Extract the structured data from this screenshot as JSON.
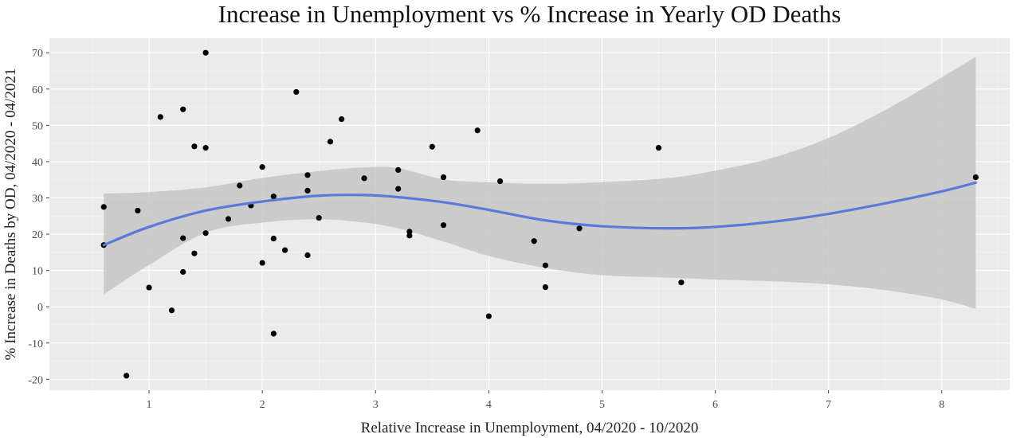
{
  "chart_data": {
    "type": "scatter",
    "title": "Increase in Unemployment vs % Increase in Yearly OD Deaths",
    "xlabel": "Relative Increase in Unemployment, 04/2020 - 10/2020",
    "ylabel": "% Increase in Deaths by OD, 04/2020 - 04/2021",
    "xlim": [
      0.12,
      8.6
    ],
    "ylim": [
      -23,
      74
    ],
    "x_ticks": [
      1,
      2,
      3,
      4,
      5,
      6,
      7,
      8
    ],
    "y_ticks": [
      -20,
      -10,
      0,
      10,
      20,
      30,
      40,
      50,
      60,
      70
    ],
    "grid": true,
    "colors": {
      "panel_background": "#ebebeb",
      "grid": "#ffffff",
      "points": "#000000",
      "smooth_line": "#5b79d9",
      "confidence_band": "#c6c6c6"
    },
    "points": [
      {
        "x": 0.6,
        "y": 27.5
      },
      {
        "x": 0.6,
        "y": 17.0
      },
      {
        "x": 0.8,
        "y": -19.0
      },
      {
        "x": 0.9,
        "y": 26.5
      },
      {
        "x": 1.0,
        "y": 5.3
      },
      {
        "x": 1.1,
        "y": 52.3
      },
      {
        "x": 1.2,
        "y": -1.0
      },
      {
        "x": 1.3,
        "y": 54.4
      },
      {
        "x": 1.3,
        "y": 18.9
      },
      {
        "x": 1.3,
        "y": 9.6
      },
      {
        "x": 1.4,
        "y": 44.2
      },
      {
        "x": 1.4,
        "y": 14.7
      },
      {
        "x": 1.5,
        "y": 70.0
      },
      {
        "x": 1.5,
        "y": 43.8
      },
      {
        "x": 1.5,
        "y": 20.3
      },
      {
        "x": 1.7,
        "y": 24.2
      },
      {
        "x": 1.8,
        "y": 33.4
      },
      {
        "x": 1.9,
        "y": 27.9
      },
      {
        "x": 2.0,
        "y": 38.5
      },
      {
        "x": 2.0,
        "y": 12.1
      },
      {
        "x": 2.1,
        "y": 30.4
      },
      {
        "x": 2.1,
        "y": 18.8
      },
      {
        "x": 2.1,
        "y": -7.4
      },
      {
        "x": 2.2,
        "y": 15.6
      },
      {
        "x": 2.3,
        "y": 59.2
      },
      {
        "x": 2.4,
        "y": 36.3
      },
      {
        "x": 2.4,
        "y": 32.0
      },
      {
        "x": 2.4,
        "y": 14.2
      },
      {
        "x": 2.5,
        "y": 24.5
      },
      {
        "x": 2.6,
        "y": 45.5
      },
      {
        "x": 2.7,
        "y": 51.7
      },
      {
        "x": 2.9,
        "y": 35.4
      },
      {
        "x": 3.2,
        "y": 37.7
      },
      {
        "x": 3.2,
        "y": 32.5
      },
      {
        "x": 3.3,
        "y": 20.7
      },
      {
        "x": 3.3,
        "y": 19.6
      },
      {
        "x": 3.5,
        "y": 44.1
      },
      {
        "x": 3.6,
        "y": 35.7
      },
      {
        "x": 3.6,
        "y": 22.5
      },
      {
        "x": 3.9,
        "y": 48.6
      },
      {
        "x": 4.0,
        "y": -2.6
      },
      {
        "x": 4.1,
        "y": 34.6
      },
      {
        "x": 4.4,
        "y": 18.1
      },
      {
        "x": 4.5,
        "y": 11.4
      },
      {
        "x": 4.5,
        "y": 5.4
      },
      {
        "x": 4.8,
        "y": 21.6
      },
      {
        "x": 5.5,
        "y": 43.8
      },
      {
        "x": 5.7,
        "y": 6.7
      },
      {
        "x": 8.3,
        "y": 35.7
      }
    ],
    "smooth": {
      "method": "loess",
      "x": [
        0.6,
        1.0,
        1.5,
        2.0,
        2.5,
        2.9,
        3.2,
        3.6,
        4.0,
        4.5,
        5.0,
        5.6,
        6.0,
        6.5,
        7.0,
        7.5,
        8.0,
        8.3
      ],
      "y": [
        17.0,
        22.0,
        26.5,
        29.0,
        30.6,
        30.8,
        30.2,
        28.8,
        26.7,
        23.8,
        22.2,
        21.6,
        22.0,
        23.4,
        25.6,
        28.5,
        31.8,
        34.2
      ],
      "lower": [
        3.4,
        11.5,
        20.4,
        23.2,
        24.1,
        23.2,
        21.6,
        18.0,
        14.0,
        10.7,
        8.7,
        8.0,
        7.5,
        7.0,
        6.2,
        4.6,
        2.0,
        -0.6
      ],
      "upper": [
        31.2,
        31.6,
        32.9,
        35.5,
        37.4,
        38.4,
        38.2,
        35.1,
        34.3,
        33.9,
        34.3,
        35.5,
        37.5,
        41.0,
        46.5,
        54.2,
        63.2,
        68.9
      ]
    }
  }
}
